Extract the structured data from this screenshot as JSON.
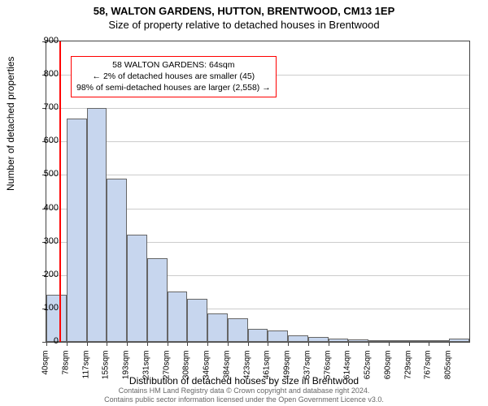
{
  "title": {
    "line1": "58, WALTON GARDENS, HUTTON, BRENTWOOD, CM13 1EP",
    "line2": "Size of property relative to detached houses in Brentwood"
  },
  "axes": {
    "ylabel": "Number of detached properties",
    "xlabel": "Distribution of detached houses by size in Brentwood",
    "ylim_max": 900,
    "ytick_step": 100,
    "yticks": [
      0,
      100,
      200,
      300,
      400,
      500,
      600,
      700,
      800,
      900
    ],
    "xticks": [
      "40sqm",
      "78sqm",
      "117sqm",
      "155sqm",
      "193sqm",
      "231sqm",
      "270sqm",
      "308sqm",
      "346sqm",
      "384sqm",
      "423sqm",
      "461sqm",
      "499sqm",
      "537sqm",
      "576sqm",
      "614sqm",
      "652sqm",
      "690sqm",
      "729sqm",
      "767sqm",
      "805sqm"
    ]
  },
  "chart": {
    "type": "histogram",
    "bar_fill": "#c7d6ee",
    "bar_border": "#666666",
    "grid_color": "#cccccc",
    "background": "#ffffff",
    "values": [
      140,
      670,
      700,
      490,
      320,
      250,
      150,
      130,
      85,
      70,
      40,
      35,
      20,
      15,
      10,
      8,
      6,
      0,
      5,
      0,
      10
    ]
  },
  "reference_line": {
    "color": "#ff0000",
    "position_bin": 0.65
  },
  "info_box": {
    "border_color": "#ff0000",
    "line1": "58 WALTON GARDENS: 64sqm",
    "line2": "← 2% of detached houses are smaller (45)",
    "line3": "98% of semi-detached houses are larger (2,558) →"
  },
  "footer": {
    "line1": "Contains HM Land Registry data © Crown copyright and database right 2024.",
    "line2": "Contains public sector information licensed under the Open Government Licence v3.0."
  }
}
